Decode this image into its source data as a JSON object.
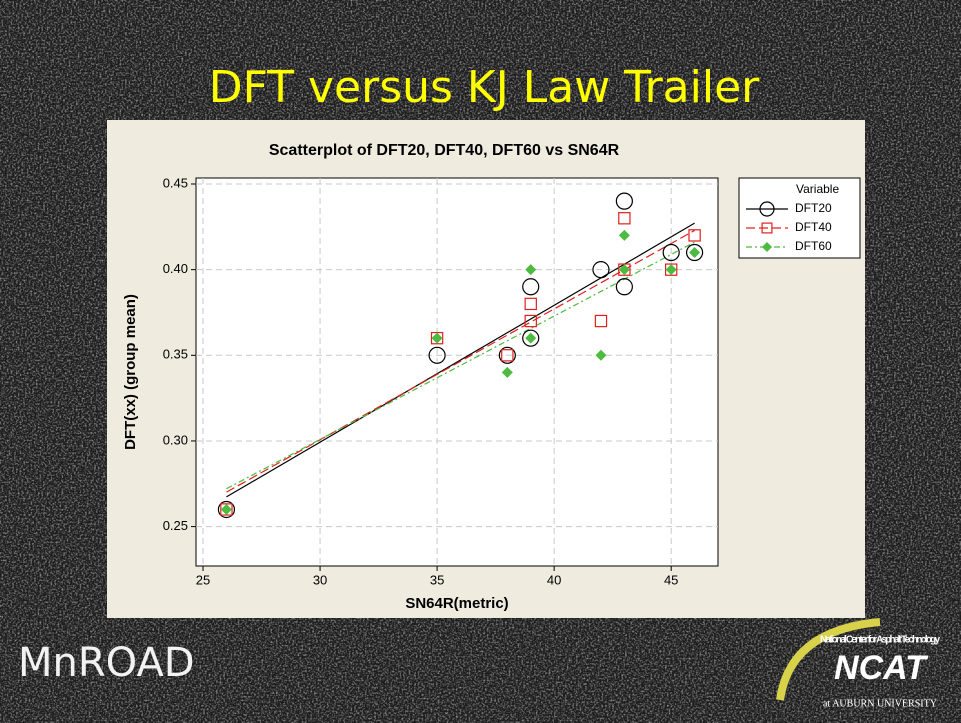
{
  "slide_title": "DFT versus KJ Law Trailer",
  "logos": {
    "left": "MnROAD",
    "right_top": "National Center for Asphalt Technology",
    "right_main": "NCAT",
    "right_bottom": "at AUBURN UNIVERSITY"
  },
  "chart_data": {
    "type": "scatter",
    "title": "Scatterplot of DFT20, DFT40, DFT60 vs SN64R",
    "x_label": "SN64R(metric)",
    "y_label": "DFT(xx) (group mean)",
    "legend_title": "Variable",
    "legend": "right",
    "grid": true,
    "fit_lines": true,
    "xlim": [
      24.7,
      47
    ],
    "xticks": [
      25,
      30,
      35,
      40,
      45
    ],
    "ylim": [
      0.227,
      0.4535
    ],
    "yticks": [
      {
        "value": 0.25,
        "label": "0.25"
      },
      {
        "value": 0.3,
        "label": "0.30"
      },
      {
        "value": 0.35,
        "label": "0.35"
      },
      {
        "value": 0.4,
        "label": "0.40"
      },
      {
        "value": 0.45,
        "label": "0.45"
      }
    ],
    "series": [
      {
        "name": "DFT20",
        "color": "#000000",
        "marker": "circle",
        "line_style": "solid",
        "x": [
          26,
          35,
          38,
          39,
          39,
          42,
          43,
          43,
          45,
          46
        ],
        "values": [
          0.26,
          0.35,
          0.35,
          0.39,
          0.36,
          0.4,
          0.44,
          0.39,
          0.41,
          0.41
        ]
      },
      {
        "name": "DFT40",
        "color": "#e0201c",
        "marker": "square",
        "line_style": "dashed",
        "x": [
          26,
          35,
          38,
          39,
          39,
          42,
          43,
          43,
          45,
          46
        ],
        "values": [
          0.26,
          0.36,
          0.35,
          0.38,
          0.37,
          0.37,
          0.43,
          0.4,
          0.4,
          0.42
        ]
      },
      {
        "name": "DFT60",
        "color": "#4dbb3f",
        "marker": "diamond",
        "line_style": "dotdash",
        "x": [
          26,
          35,
          38,
          39,
          39,
          42,
          43,
          43,
          45,
          46
        ],
        "values": [
          0.26,
          0.36,
          0.34,
          0.4,
          0.36,
          0.35,
          0.42,
          0.4,
          0.4,
          0.41
        ]
      }
    ]
  }
}
